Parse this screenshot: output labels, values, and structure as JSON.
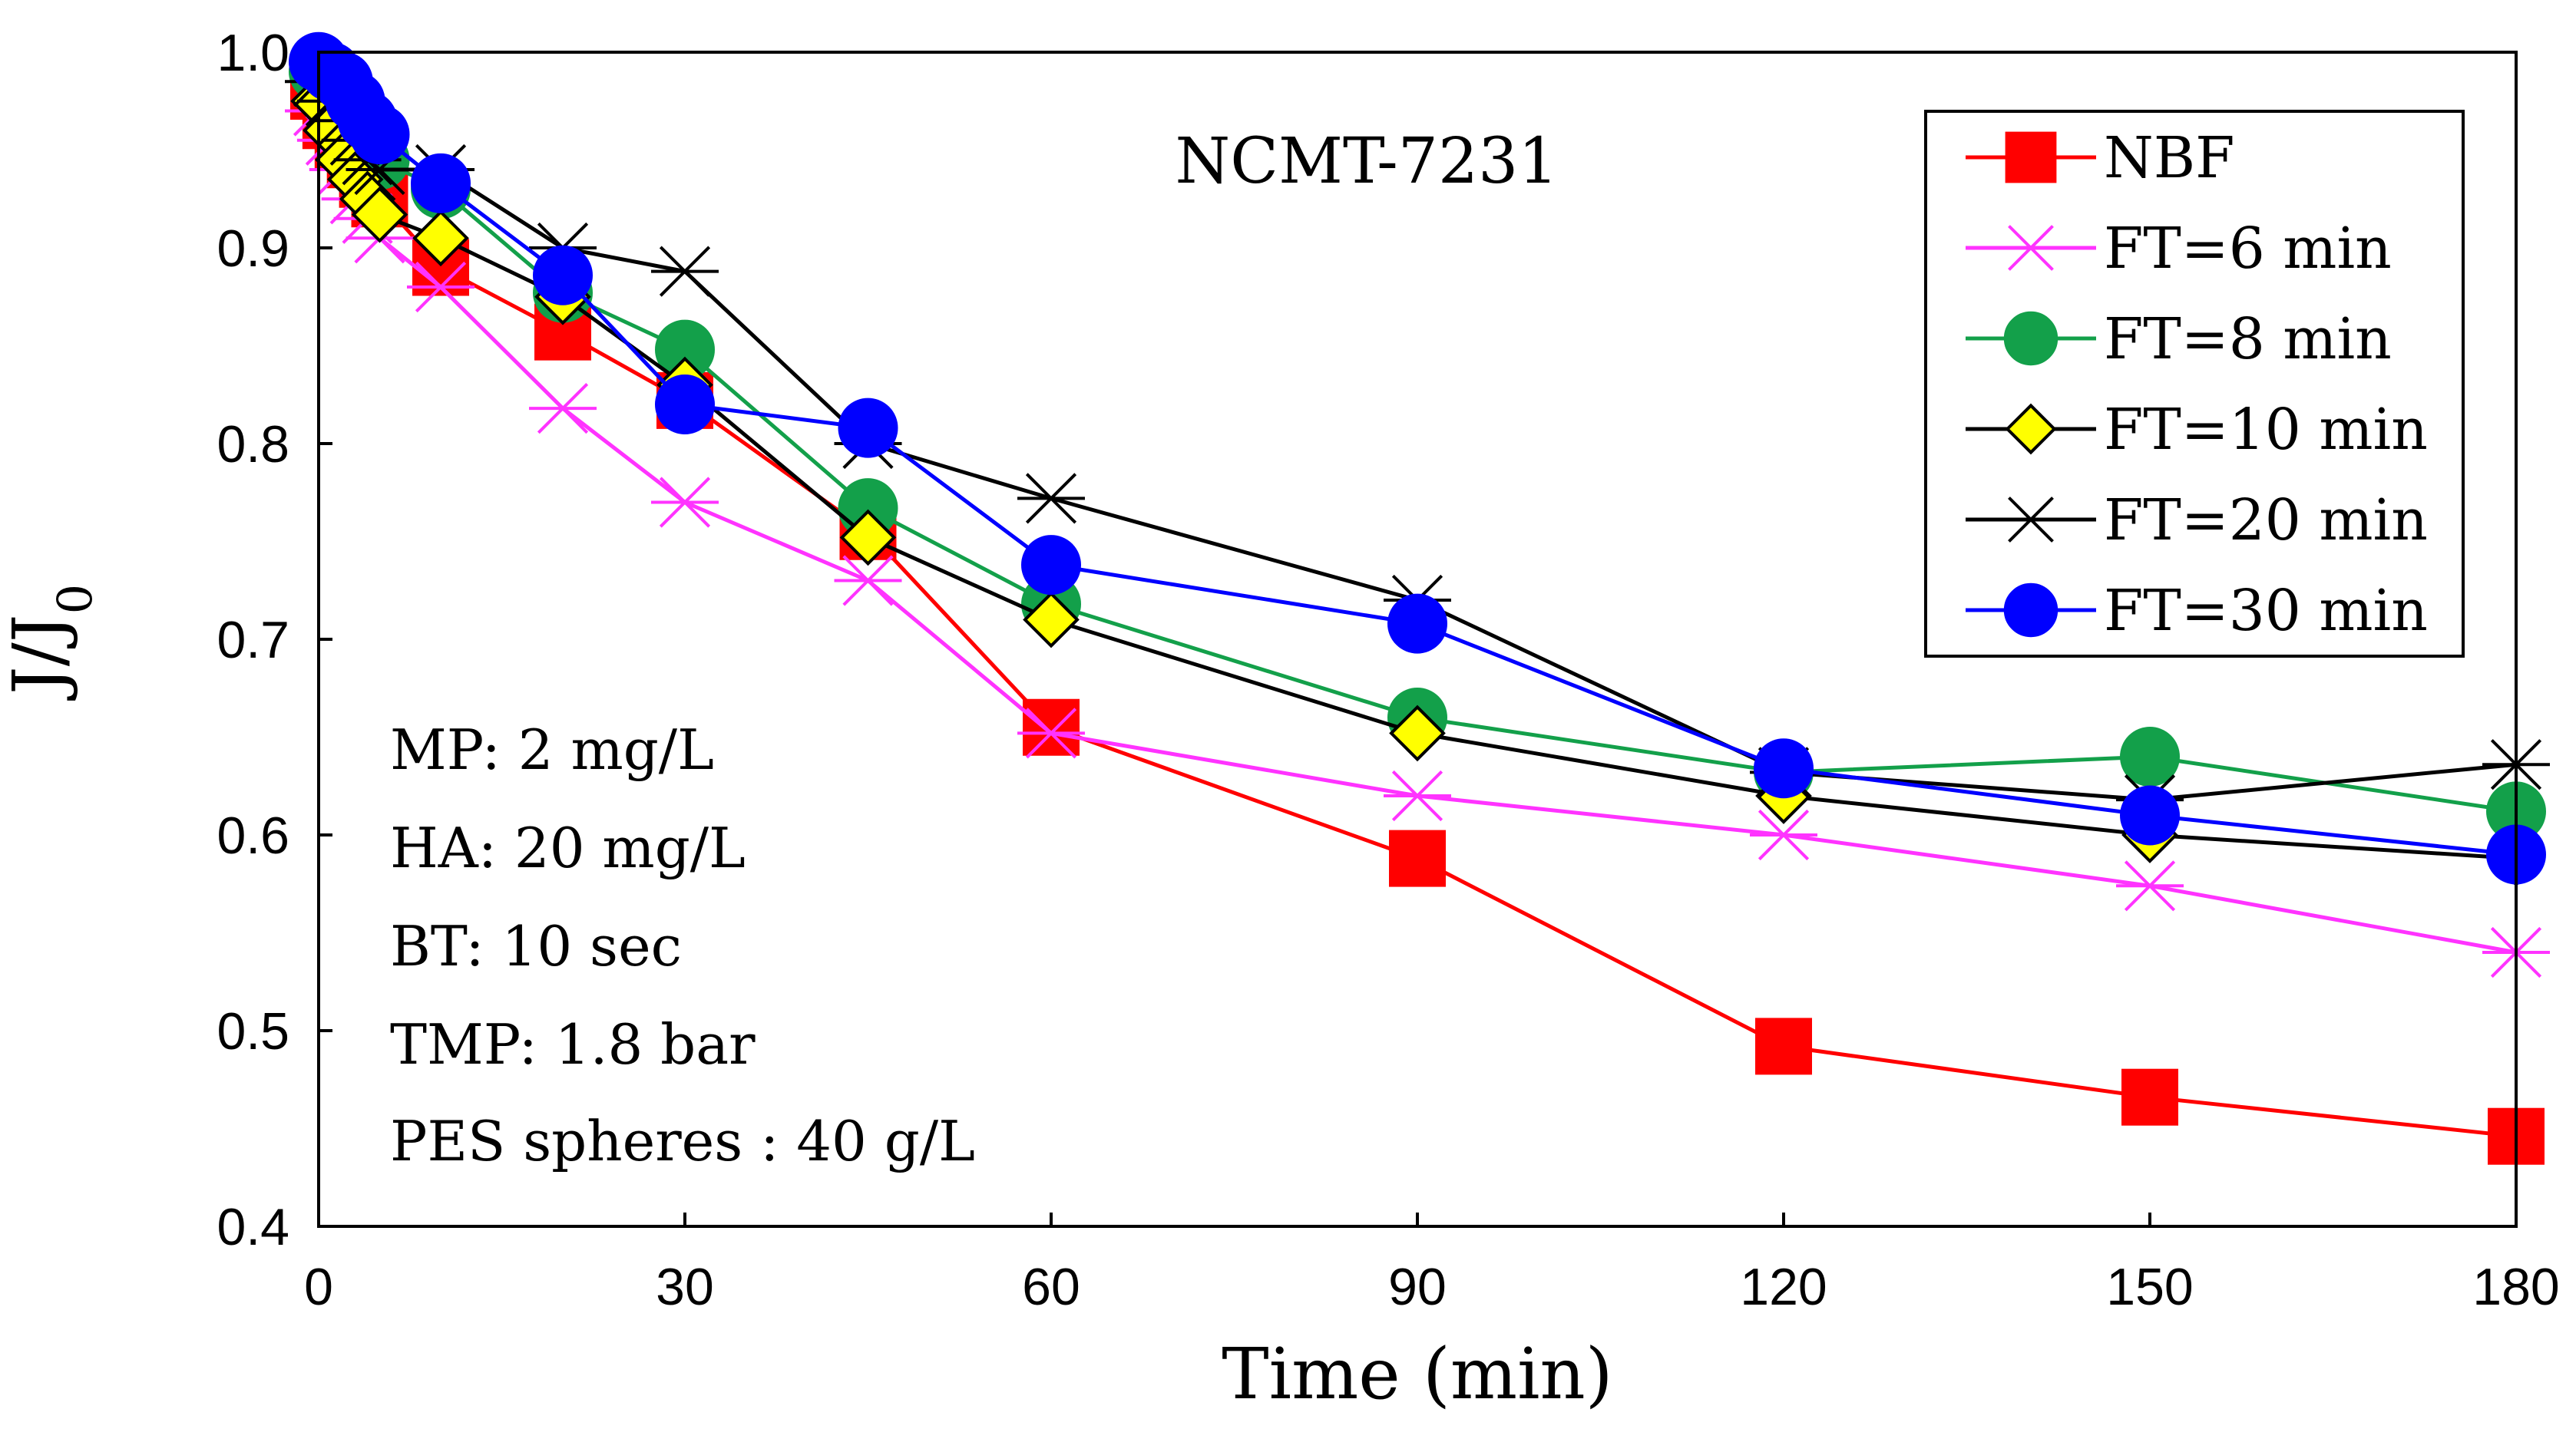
{
  "chart_data": {
    "type": "line",
    "title": "NCMT-7231",
    "xlabel": "Time (min)",
    "ylabel": "J/J",
    "ylabel_subscript": "0",
    "xlim": [
      0,
      180
    ],
    "ylim": [
      0.4,
      1.0
    ],
    "xticks": [
      0,
      30,
      60,
      90,
      120,
      150,
      180
    ],
    "yticks": [
      0.4,
      0.5,
      0.6,
      0.7,
      0.8,
      0.9,
      1.0
    ],
    "ytick_labels": [
      "0.4",
      "0.5",
      "0.6",
      "0.7",
      "0.8",
      "0.9",
      "1.0"
    ],
    "grid": false,
    "legend_position": "top-right",
    "annotations": [
      "MP: 2 mg/L",
      "HA: 20 mg/L",
      "BT: 10 sec",
      "TMP: 1.8 bar",
      "PES spheres : 40 g/L"
    ],
    "series": [
      {
        "name": "NBF",
        "color": "#ff0000",
        "marker": "square",
        "x": [
          0,
          1,
          2,
          3,
          4,
          5,
          10,
          20,
          30,
          45,
          60,
          90,
          120,
          150,
          180
        ],
        "y": [
          0.98,
          0.965,
          0.955,
          0.945,
          0.935,
          0.925,
          0.89,
          0.857,
          0.822,
          0.755,
          0.655,
          0.588,
          0.492,
          0.466,
          0.446
        ]
      },
      {
        "name": "FT=6 min",
        "color": "#ff33ff",
        "marker": "asterisk",
        "x": [
          0,
          1,
          2,
          3,
          4,
          5,
          10,
          20,
          30,
          45,
          60,
          90,
          120,
          150,
          180
        ],
        "y": [
          0.97,
          0.955,
          0.94,
          0.925,
          0.915,
          0.905,
          0.88,
          0.818,
          0.77,
          0.73,
          0.652,
          0.62,
          0.6,
          0.574,
          0.54
        ]
      },
      {
        "name": "FT=8 min",
        "color": "#13a04a",
        "marker": "circle",
        "x": [
          0,
          1,
          2,
          3,
          4,
          5,
          10,
          20,
          30,
          45,
          60,
          90,
          120,
          150,
          180
        ],
        "y": [
          0.99,
          0.978,
          0.968,
          0.958,
          0.95,
          0.945,
          0.93,
          0.877,
          0.848,
          0.767,
          0.718,
          0.66,
          0.632,
          0.64,
          0.612
        ]
      },
      {
        "name": "FT=10 min",
        "color": "#000000",
        "fill": "#ffff00",
        "marker": "diamond",
        "x": [
          0,
          1,
          2,
          3,
          4,
          5,
          10,
          20,
          30,
          45,
          60,
          90,
          120,
          150,
          180
        ],
        "y": [
          0.975,
          0.96,
          0.945,
          0.935,
          0.925,
          0.917,
          0.905,
          0.875,
          0.83,
          0.752,
          0.71,
          0.652,
          0.62,
          0.6,
          0.588
        ]
      },
      {
        "name": "FT=20 min",
        "color": "#000000",
        "marker": "asterisk",
        "x": [
          0,
          1,
          2,
          3,
          4,
          5,
          10,
          20,
          30,
          45,
          60,
          90,
          120,
          150,
          180
        ],
        "y": [
          0.985,
          0.975,
          0.965,
          0.955,
          0.945,
          0.94,
          0.94,
          0.9,
          0.888,
          0.8,
          0.772,
          0.72,
          0.632,
          0.618,
          0.636
        ]
      },
      {
        "name": "FT=30 min",
        "color": "#0000ff",
        "marker": "circle",
        "x": [
          0,
          1,
          2,
          3,
          4,
          5,
          10,
          20,
          30,
          45,
          60,
          90,
          120,
          150,
          180
        ],
        "y": [
          0.995,
          0.99,
          0.985,
          0.975,
          0.965,
          0.958,
          0.933,
          0.886,
          0.82,
          0.808,
          0.738,
          0.708,
          0.634,
          0.61,
          0.59
        ]
      }
    ]
  }
}
